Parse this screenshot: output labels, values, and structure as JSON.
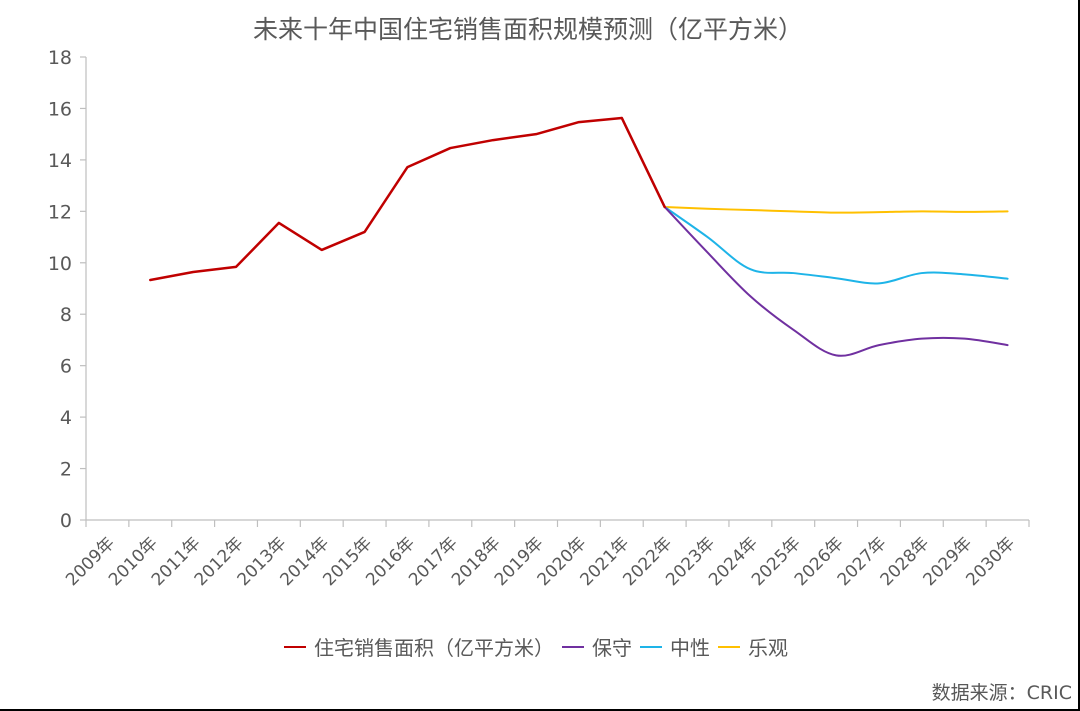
{
  "chart_data": {
    "type": "line",
    "title": "未来十年中国住宅销售面积规模预测（亿平方米）",
    "xlabel": "",
    "ylabel": "",
    "ylim": [
      0,
      18
    ],
    "yticks": [
      0,
      2,
      4,
      6,
      8,
      10,
      12,
      14,
      16,
      18
    ],
    "grid": false,
    "legend_position": "bottom",
    "categories": [
      "2009年",
      "2010年",
      "2011年",
      "2012年",
      "2013年",
      "2014年",
      "2015年",
      "2016年",
      "2017年",
      "2018年",
      "2019年",
      "2020年",
      "2021年",
      "2022年",
      "2023年",
      "2024年",
      "2025年",
      "2026年",
      "2027年",
      "2028年",
      "2029年",
      "2030年"
    ],
    "series": [
      {
        "name": "住宅销售面积（亿平方米）",
        "color": "#C00000",
        "smooth": false,
        "values": [
          null,
          9.33,
          9.64,
          9.84,
          11.55,
          10.5,
          11.2,
          13.72,
          14.46,
          14.77,
          15.0,
          15.47,
          15.63,
          12.17,
          null,
          null,
          null,
          null,
          null,
          null,
          null,
          null
        ]
      },
      {
        "name": "保守",
        "color": "#7030A0",
        "smooth": true,
        "values": [
          null,
          null,
          null,
          null,
          null,
          null,
          null,
          null,
          null,
          null,
          null,
          null,
          15.63,
          12.17,
          10.4,
          8.7,
          7.4,
          6.4,
          6.8,
          7.05,
          7.05,
          6.8
        ]
      },
      {
        "name": "中性",
        "color": "#1EB4E8",
        "smooth": true,
        "values": [
          null,
          null,
          null,
          null,
          null,
          null,
          null,
          null,
          null,
          null,
          null,
          null,
          15.63,
          12.17,
          11.0,
          9.75,
          9.6,
          9.4,
          9.2,
          9.6,
          9.55,
          9.38
        ]
      },
      {
        "name": "乐观",
        "color": "#FFC000",
        "smooth": true,
        "values": [
          null,
          null,
          null,
          null,
          null,
          null,
          null,
          null,
          null,
          null,
          null,
          null,
          15.63,
          12.17,
          12.1,
          12.05,
          12.0,
          11.95,
          11.97,
          12.0,
          11.98,
          12.0
        ]
      }
    ]
  },
  "header": {
    "title": "未来十年中国住宅销售面积规模预测（亿平方米）"
  },
  "legend": {
    "items": [
      {
        "label": "住宅销售面积（亿平方米）",
        "color": "#C00000"
      },
      {
        "label": "保守",
        "color": "#7030A0"
      },
      {
        "label": "中性",
        "color": "#1EB4E8"
      },
      {
        "label": "乐观",
        "color": "#FFC000"
      }
    ]
  },
  "footer": {
    "source": "数据来源：CRIC"
  },
  "colors": {
    "axis": "#BFBFBF",
    "text": "#595959"
  }
}
